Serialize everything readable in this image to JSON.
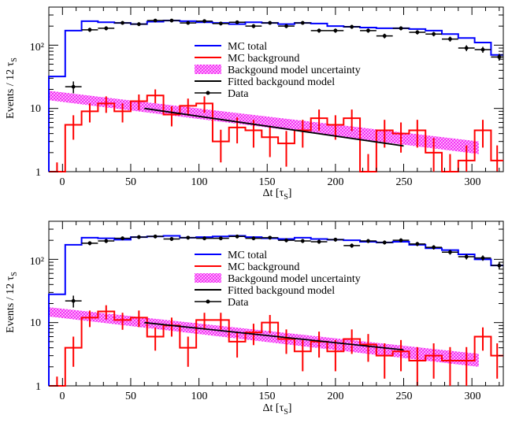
{
  "chart_data": [
    {
      "type": "line",
      "panel": "top",
      "title": "",
      "xlabel": "Δt [τS]",
      "ylabel": "Events / 12 τS",
      "xlim": [
        -10,
        323
      ],
      "ylim": [
        1,
        400
      ],
      "yscale": "log",
      "x_ticks": [
        "0",
        "50",
        "100",
        "150",
        "200",
        "250",
        "300"
      ],
      "y_ticks": [
        "1",
        "10",
        "10²"
      ],
      "legend": {
        "placement": "upper-middle",
        "entries": [
          "MC total",
          "MC background",
          "Backgound model uncertainty",
          "Fitted backgound model",
          "Data"
        ]
      },
      "bin_edges": [
        -10,
        2,
        14,
        26,
        38,
        50,
        62,
        74,
        86,
        98,
        110,
        122,
        134,
        146,
        158,
        170,
        182,
        194,
        206,
        218,
        230,
        242,
        254,
        266,
        278,
        290,
        302,
        314,
        323
      ],
      "mc_total": [
        32,
        170,
        240,
        230,
        225,
        215,
        235,
        245,
        240,
        230,
        225,
        215,
        230,
        225,
        215,
        225,
        220,
        200,
        195,
        190,
        185,
        185,
        180,
        170,
        150,
        130,
        110,
        70
      ],
      "mc_background": [
        1,
        5.5,
        9,
        12,
        9,
        13,
        16,
        8,
        11,
        12,
        3,
        5,
        4.5,
        3.5,
        2.8,
        4.5,
        7,
        5.5,
        7,
        1,
        4.5,
        4,
        4.5,
        2,
        1,
        1.5,
        4.5,
        1.5
      ],
      "mc_background_errors": [
        0.4,
        2.3,
        3,
        3.5,
        3,
        3.6,
        4,
        2.8,
        3.3,
        3.5,
        1.6,
        2.2,
        2.1,
        1.8,
        1.6,
        2.1,
        2.6,
        2.3,
        2.6,
        0.9,
        2.1,
        2,
        2.1,
        1.4,
        0.9,
        1.1,
        2.1,
        1.1
      ],
      "uncertainty_band": {
        "x": [
          -10,
          305
        ],
        "lower_start": 13.5,
        "upper_start": 19,
        "lower_end": 1.9,
        "upper_end": 3.0
      },
      "fit_line": {
        "x": [
          60,
          250
        ],
        "y": [
          10,
          2.55
        ]
      },
      "data": {
        "x": [
          8,
          20,
          32,
          44,
          56,
          68,
          80,
          92,
          104,
          116,
          128,
          140,
          152,
          164,
          176,
          188,
          200,
          212,
          224,
          236,
          248,
          260,
          272,
          284,
          296,
          308,
          320
        ],
        "y": [
          22,
          175,
          185,
          225,
          215,
          245,
          245,
          225,
          240,
          220,
          230,
          200,
          225,
          200,
          225,
          170,
          170,
          195,
          170,
          140,
          185,
          160,
          150,
          125,
          90,
          85,
          65
        ],
        "xerr": 6
      }
    },
    {
      "type": "line",
      "panel": "bottom",
      "title": "",
      "xlabel": "Δt [τS]",
      "ylabel": "Events / 12 τS",
      "xlim": [
        -10,
        323
      ],
      "ylim": [
        1,
        400
      ],
      "yscale": "log",
      "x_ticks": [
        "0",
        "50",
        "100",
        "150",
        "200",
        "250",
        "300"
      ],
      "y_ticks": [
        "1",
        "10",
        "10²"
      ],
      "legend": {
        "placement": "upper-middle",
        "entries": [
          "MC total",
          "MC background",
          "Backgound model uncertainty",
          "Fitted backgound model",
          "Data"
        ]
      },
      "bin_edges": [
        -10,
        2,
        14,
        26,
        38,
        50,
        62,
        74,
        86,
        98,
        110,
        122,
        134,
        146,
        158,
        170,
        182,
        194,
        206,
        218,
        230,
        242,
        254,
        266,
        278,
        290,
        302,
        314,
        323
      ],
      "mc_total": [
        28,
        170,
        220,
        215,
        205,
        225,
        230,
        235,
        220,
        225,
        230,
        235,
        225,
        215,
        210,
        220,
        210,
        205,
        200,
        190,
        185,
        190,
        170,
        150,
        140,
        120,
        100,
        80
      ],
      "mc_background": [
        1,
        4,
        12,
        15,
        11,
        12,
        6,
        9,
        4,
        11,
        11,
        5,
        7,
        10,
        5.5,
        3.5,
        5,
        3.5,
        5.5,
        4.5,
        3,
        3.5,
        2.5,
        3,
        2.5,
        2.5,
        6,
        3
      ],
      "mc_background_errors": [
        0.4,
        2,
        3.5,
        3.8,
        3.3,
        3.5,
        2.4,
        3,
        2,
        3.3,
        3.3,
        2.2,
        2.6,
        3.2,
        2.3,
        1.8,
        2.2,
        1.8,
        2.3,
        2.1,
        1.7,
        1.8,
        1.6,
        1.7,
        1.6,
        1.6,
        2.4,
        1.7
      ],
      "uncertainty_band": {
        "x": [
          -10,
          305
        ],
        "lower_start": 12.5,
        "upper_start": 17.5,
        "lower_end": 2.0,
        "upper_end": 3.2
      },
      "fit_line": {
        "x": [
          60,
          250
        ],
        "y": [
          10,
          3.7
        ]
      },
      "data": {
        "x": [
          8,
          20,
          32,
          44,
          56,
          68,
          80,
          92,
          104,
          116,
          128,
          140,
          152,
          164,
          176,
          188,
          200,
          212,
          224,
          236,
          248,
          260,
          272,
          284,
          296,
          308,
          320
        ],
        "y": [
          22,
          180,
          195,
          215,
          225,
          230,
          210,
          220,
          215,
          215,
          230,
          215,
          220,
          200,
          195,
          190,
          205,
          165,
          195,
          185,
          200,
          175,
          155,
          130,
          110,
          105,
          80
        ],
        "xerr": 6
      }
    }
  ]
}
